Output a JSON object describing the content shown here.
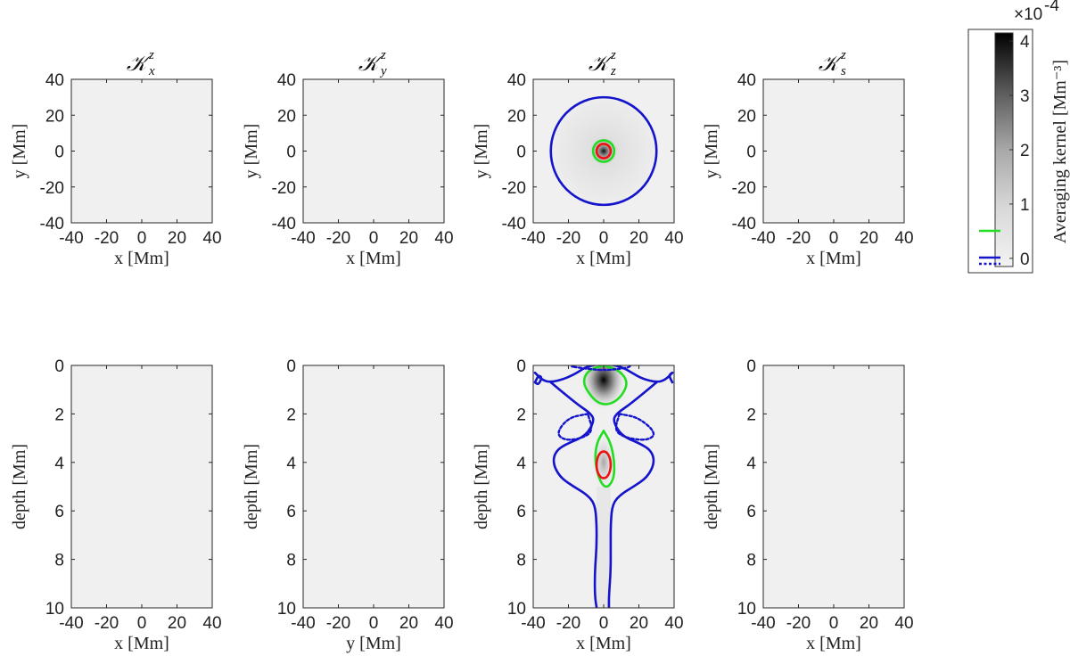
{
  "chart_data": {
    "type": "heatmap",
    "panels": [
      {
        "row": "top",
        "title": "𝒦",
        "title_sub": "x",
        "title_sup": "z",
        "xlabel": "x [Mm]",
        "ylabel": "y [Mm]",
        "xlim": [
          -40,
          40
        ],
        "ylim": [
          -40,
          40
        ],
        "xticks": [
          "-40",
          "-20",
          "0",
          "20",
          "40"
        ],
        "yticks": [
          "40",
          "20",
          "0",
          "-20",
          "-40"
        ],
        "contours": []
      },
      {
        "row": "top",
        "title": "𝒦",
        "title_sub": "y",
        "title_sup": "z",
        "xlabel": "x [Mm]",
        "ylabel": "y [Mm]",
        "xlim": [
          -40,
          40
        ],
        "ylim": [
          -40,
          40
        ],
        "xticks": [
          "-40",
          "-20",
          "0",
          "20",
          "40"
        ],
        "yticks": [
          "40",
          "20",
          "0",
          "-20",
          "-40"
        ],
        "contours": []
      },
      {
        "row": "top",
        "title": "𝒦",
        "title_sub": "z",
        "title_sup": "z",
        "xlabel": "x [Mm]",
        "ylabel": "y [Mm]",
        "xlim": [
          -40,
          40
        ],
        "ylim": [
          -40,
          40
        ],
        "xticks": [
          "-40",
          "-20",
          "0",
          "20",
          "40"
        ],
        "yticks": [
          "40",
          "20",
          "0",
          "-20",
          "-40"
        ],
        "peak": {
          "x": 0,
          "y": 0
        },
        "contours": [
          {
            "color": "blue",
            "style": "solid",
            "shape": "circle",
            "cx": 0,
            "cy": 0,
            "r": 30
          },
          {
            "color": "green",
            "style": "solid",
            "shape": "circle",
            "cx": 0,
            "cy": 0,
            "r": 6
          },
          {
            "color": "red",
            "style": "solid",
            "shape": "circle",
            "cx": 0,
            "cy": 0,
            "r": 4
          }
        ]
      },
      {
        "row": "top",
        "title": "𝒦",
        "title_sub": "s",
        "title_sup": "z",
        "xlabel": "x [Mm]",
        "ylabel": "y [Mm]",
        "xlim": [
          -40,
          40
        ],
        "ylim": [
          -40,
          40
        ],
        "xticks": [
          "-40",
          "-20",
          "0",
          "20",
          "40"
        ],
        "yticks": [
          "40",
          "20",
          "0",
          "-20",
          "-40"
        ],
        "contours": []
      },
      {
        "row": "bottom",
        "xlabel": "x [Mm]",
        "ylabel": "depth [Mm]",
        "xlim": [
          -40,
          40
        ],
        "ylim": [
          0,
          10
        ],
        "xticks": [
          "-40",
          "-20",
          "0",
          "20",
          "40"
        ],
        "yticks": [
          "0",
          "2",
          "4",
          "6",
          "8",
          "10"
        ],
        "contours": []
      },
      {
        "row": "bottom",
        "xlabel": "y [Mm]",
        "ylabel": "depth [Mm]",
        "xlim": [
          -40,
          40
        ],
        "ylim": [
          0,
          10
        ],
        "xticks": [
          "-40",
          "-20",
          "0",
          "20",
          "40"
        ],
        "yticks": [
          "0",
          "2",
          "4",
          "6",
          "8",
          "10"
        ],
        "contours": []
      },
      {
        "row": "bottom",
        "xlabel": "x [Mm]",
        "ylabel": "depth [Mm]",
        "xlim": [
          -40,
          40
        ],
        "ylim": [
          0,
          10
        ],
        "xticks": [
          "-40",
          "-20",
          "0",
          "20",
          "40"
        ],
        "yticks": [
          "0",
          "2",
          "4",
          "6",
          "8",
          "10"
        ],
        "peak": {
          "x": 0,
          "y": 0.6
        },
        "contours": [
          {
            "color": "green",
            "style": "solid",
            "shape": "path",
            "points": [
              [
                0,
                0
              ],
              [
                9,
                0.2
              ],
              [
                14,
                0.7
              ],
              [
                10,
                1.3
              ],
              [
                4,
                1.6
              ],
              [
                -2,
                1.6
              ],
              [
                -7,
                1.3
              ],
              [
                -12,
                0.7
              ],
              [
                -9,
                0.2
              ],
              [
                0,
                0
              ]
            ]
          },
          {
            "color": "green",
            "style": "solid",
            "shape": "path",
            "points": [
              [
                0,
                2.7
              ],
              [
                4,
                3.2
              ],
              [
                6,
                3.9
              ],
              [
                6,
                4.6
              ],
              [
                3,
                5.0
              ],
              [
                0,
                5.0
              ],
              [
                -3,
                4.6
              ],
              [
                -5,
                3.9
              ],
              [
                -4,
                3.2
              ],
              [
                0,
                2.7
              ]
            ]
          },
          {
            "color": "red",
            "style": "solid",
            "shape": "ellipse",
            "cx": 0,
            "cy": 4.1,
            "rx": 4,
            "ry": 0.55
          },
          {
            "color": "blue",
            "style": "solid",
            "shape": "path",
            "points": [
              [
                -39,
                0.3
              ],
              [
                -35,
                0.6
              ],
              [
                -30,
                0.7
              ],
              [
                -22,
                0.55
              ],
              [
                -15,
                0.3
              ],
              [
                -10,
                0.05
              ],
              [
                0,
                -0.1
              ],
              [
                10,
                0.05
              ],
              [
                16,
                0.3
              ],
              [
                22,
                0.55
              ],
              [
                30,
                0.7
              ],
              [
                35,
                0.6
              ],
              [
                39,
                0.3
              ]
            ]
          },
          {
            "color": "blue",
            "style": "solid",
            "shape": "path",
            "points": [
              [
                -30,
                0.7
              ],
              [
                -20,
                1.3
              ],
              [
                -14,
                1.65
              ],
              [
                -8,
                1.95
              ],
              [
                -5,
                2.25
              ],
              [
                -10,
                2.9
              ],
              [
                -20,
                3.2
              ],
              [
                -27,
                3.5
              ],
              [
                -29,
                4.0
              ],
              [
                -25,
                4.6
              ],
              [
                -17,
                5.0
              ],
              [
                -10,
                5.3
              ],
              [
                -5,
                5.7
              ],
              [
                -4,
                6.5
              ],
              [
                -4,
                7.5
              ],
              [
                -5,
                8.5
              ],
              [
                -5,
                9.5
              ],
              [
                -4,
                10
              ]
            ]
          },
          {
            "color": "blue",
            "style": "solid",
            "shape": "path",
            "points": [
              [
                30,
                0.7
              ],
              [
                20,
                1.3
              ],
              [
                14,
                1.65
              ],
              [
                8,
                1.95
              ],
              [
                5,
                2.25
              ],
              [
                10,
                2.9
              ],
              [
                20,
                3.2
              ],
              [
                27,
                3.5
              ],
              [
                29,
                4.0
              ],
              [
                25,
                4.6
              ],
              [
                17,
                5.0
              ],
              [
                10,
                5.3
              ],
              [
                5,
                5.7
              ],
              [
                4,
                6.5
              ],
              [
                4,
                7.5
              ],
              [
                4,
                8.5
              ],
              [
                3,
                9.5
              ],
              [
                3,
                10
              ]
            ]
          },
          {
            "color": "blue",
            "style": "dotted",
            "shape": "path",
            "points": [
              [
                -18,
                0.05
              ],
              [
                -10,
                -0.3
              ],
              [
                0,
                -0.4
              ],
              [
                10,
                -0.3
              ],
              [
                17,
                0.05
              ],
              [
                8,
                0.15
              ],
              [
                0,
                0.2
              ],
              [
                -8,
                0.15
              ],
              [
                -18,
                0.05
              ]
            ]
          },
          {
            "color": "blue",
            "style": "dotted",
            "shape": "path",
            "points": [
              [
                -9,
                2.0
              ],
              [
                -20,
                2.15
              ],
              [
                -27,
                2.8
              ],
              [
                -22,
                3.1
              ],
              [
                -12,
                3.0
              ],
              [
                -6,
                2.7
              ],
              [
                -9,
                2.0
              ]
            ]
          },
          {
            "color": "blue",
            "style": "dotted",
            "shape": "path",
            "points": [
              [
                9,
                2.0
              ],
              [
                20,
                2.15
              ],
              [
                30,
                2.8
              ],
              [
                25,
                3.1
              ],
              [
                13,
                3.0
              ],
              [
                6,
                2.7
              ],
              [
                9,
                2.0
              ]
            ]
          },
          {
            "color": "blue",
            "style": "solid",
            "shape": "path",
            "points": [
              [
                -39,
                0.7
              ],
              [
                -37,
                0.4
              ],
              [
                -35,
                0.5
              ],
              [
                -37,
                0.8
              ],
              [
                -39,
                0.7
              ]
            ]
          },
          {
            "color": "blue",
            "style": "solid",
            "shape": "path",
            "points": [
              [
                39,
                0.7
              ],
              [
                37,
                0.4
              ],
              [
                39,
                0.3
              ]
            ]
          }
        ]
      },
      {
        "row": "bottom",
        "xlabel": "x [Mm]",
        "ylabel": "depth [Mm]",
        "xlim": [
          -40,
          40
        ],
        "ylim": [
          0,
          10
        ],
        "xticks": [
          "-40",
          "-20",
          "0",
          "20",
          "40"
        ],
        "yticks": [
          "0",
          "2",
          "4",
          "6",
          "8",
          "10"
        ],
        "contours": []
      }
    ],
    "colorbar": {
      "label": "Averaging kernel [Mm⁻³]",
      "multiplier_base": "×10",
      "multiplier_exp": "-4",
      "range": [
        -0.15,
        4.15
      ],
      "ticks": [
        "0",
        "1",
        "2",
        "3",
        "4"
      ],
      "legend_lines": [
        {
          "color": "green",
          "style": "solid"
        },
        {
          "color": "blue",
          "style": "solid+dotted"
        }
      ]
    }
  },
  "colors": {
    "background_panel": "#f0f0f0",
    "green": "#22dd22",
    "blue": "#1414cc",
    "red": "#ee1111"
  }
}
